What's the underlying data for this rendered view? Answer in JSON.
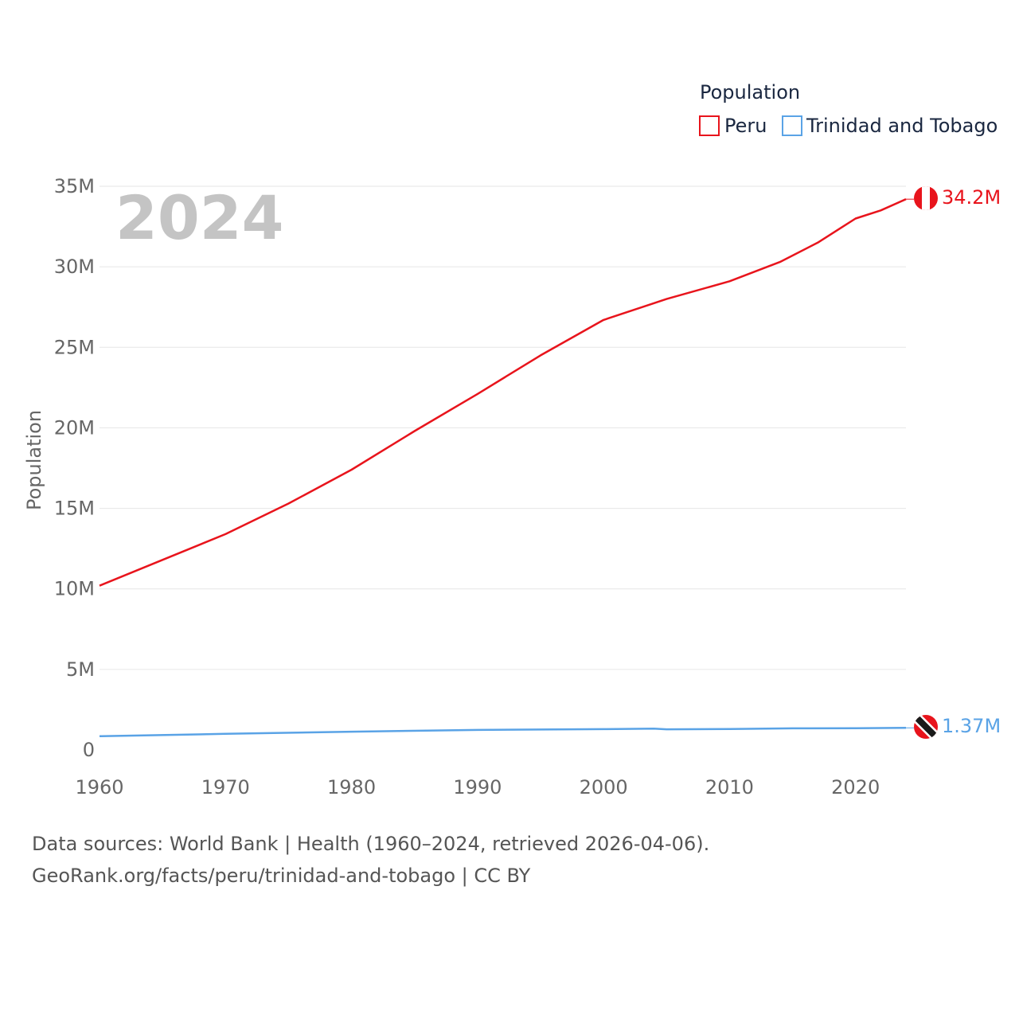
{
  "chart_data": {
    "type": "line",
    "legend": {
      "title": "Population",
      "position": "top-right"
    },
    "ylabel": "Population",
    "ylim": [
      0,
      35000000
    ],
    "yticks": [
      {
        "value": 0,
        "label": "0"
      },
      {
        "value": 5000000,
        "label": "5M"
      },
      {
        "value": 10000000,
        "label": "10M"
      },
      {
        "value": 15000000,
        "label": "15M"
      },
      {
        "value": 20000000,
        "label": "20M"
      },
      {
        "value": 25000000,
        "label": "25M"
      },
      {
        "value": 30000000,
        "label": "30M"
      },
      {
        "value": 35000000,
        "label": "35M"
      }
    ],
    "xlim": [
      1960,
      2024
    ],
    "xticks": [
      "1960",
      "1970",
      "1980",
      "1990",
      "2000",
      "2010",
      "2020"
    ],
    "year_label": "2024",
    "series": [
      {
        "name": "Peru",
        "color": "#e8141c",
        "end_label": "34.2M",
        "flag": "peru-flag",
        "points": [
          [
            1960,
            10200000
          ],
          [
            1965,
            11800000
          ],
          [
            1970,
            13400000
          ],
          [
            1975,
            15300000
          ],
          [
            1980,
            17400000
          ],
          [
            1985,
            19800000
          ],
          [
            1990,
            22100000
          ],
          [
            1995,
            24500000
          ],
          [
            2000,
            26700000
          ],
          [
            2005,
            28000000
          ],
          [
            2010,
            29100000
          ],
          [
            2014,
            30300000
          ],
          [
            2017,
            31500000
          ],
          [
            2019,
            32500000
          ],
          [
            2020,
            33000000
          ],
          [
            2022,
            33500000
          ],
          [
            2024,
            34200000
          ]
        ]
      },
      {
        "name": "Trinidad and Tobago",
        "color": "#5aa3e6",
        "end_label": "1.37M",
        "flag": "trinidad-and-tobago-flag",
        "points": [
          [
            1960,
            850000
          ],
          [
            1970,
            1000000
          ],
          [
            1980,
            1130000
          ],
          [
            1990,
            1240000
          ],
          [
            2000,
            1290000
          ],
          [
            2004,
            1320000
          ],
          [
            2005,
            1280000
          ],
          [
            2010,
            1300000
          ],
          [
            2015,
            1340000
          ],
          [
            2020,
            1350000
          ],
          [
            2024,
            1370000
          ]
        ]
      }
    ]
  },
  "footer": {
    "sources": "Data sources: World Bank | Health (1960–2024, retrieved 2026-04-06).",
    "link": "GeoRank.org/facts/peru/trinidad-and-tobago | CC BY"
  }
}
